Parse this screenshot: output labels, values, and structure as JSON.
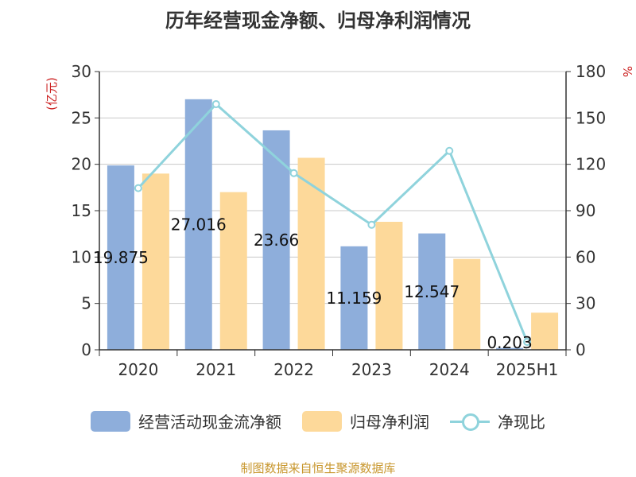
{
  "chart_data": {
    "type": "bar",
    "title": "历年经营现金净额、归母净利润情况",
    "categories": [
      "2020",
      "2021",
      "2022",
      "2023",
      "2024",
      "2025H1"
    ],
    "series": [
      {
        "name": "经营活动现金流净额",
        "type": "bar",
        "axis": "left",
        "values": [
          19.875,
          27.016,
          23.66,
          11.159,
          12.547,
          0.203
        ],
        "labels": [
          "19.875",
          "27.016",
          "23.66",
          "11.159",
          "12.547",
          "0.203"
        ]
      },
      {
        "name": "归母净利润",
        "type": "bar",
        "axis": "left",
        "values": [
          19.0,
          17.0,
          20.7,
          13.8,
          9.8,
          4.0
        ]
      },
      {
        "name": "净现比",
        "type": "line",
        "axis": "right",
        "values": [
          104.6,
          158.9,
          114.3,
          80.9,
          128.7,
          5.1
        ]
      }
    ],
    "ylabel_left": "(亿元)",
    "ylabel_right": "%",
    "ylim_left": [
      0,
      30
    ],
    "ylim_right": [
      0,
      180
    ],
    "yticks_left": [
      0,
      5,
      10,
      15,
      20,
      25,
      30
    ],
    "yticks_right": [
      0,
      30,
      60,
      90,
      120,
      150,
      180
    ],
    "grid": true,
    "legend_position": "bottom",
    "colors": {
      "cash_flow": "#8eaedb",
      "net_profit": "#fdd99a",
      "ratio": "#8fd3dc",
      "axis_label": "#cc2222"
    }
  },
  "source_note": "制图数据来自恒生聚源数据库"
}
